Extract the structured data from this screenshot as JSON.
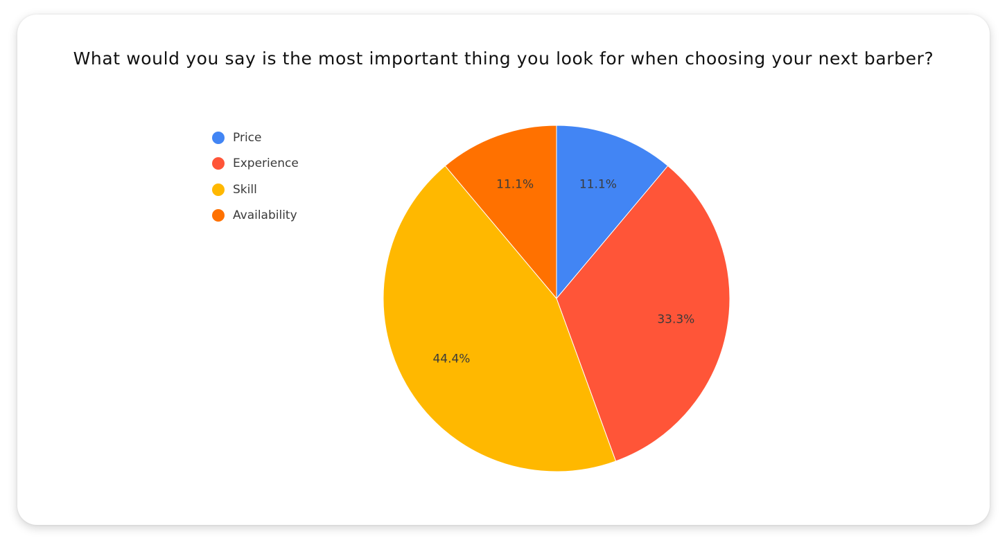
{
  "chart_data": {
    "type": "pie",
    "title": "What would you say is the most important thing you look for when choosing your next barber?",
    "categories": [
      "Price",
      "Experience",
      "Skill",
      "Availability"
    ],
    "values": [
      11.1,
      33.3,
      44.4,
      11.1
    ],
    "labels": [
      "11.1%",
      "33.3%",
      "44.4%",
      "11.1%"
    ],
    "colors": [
      "#4285F4",
      "#FF5538",
      "#FFB800",
      "#FF7100"
    ],
    "start_angle": "12 o'clock",
    "direction": "clockwise",
    "legend_position": "left"
  }
}
